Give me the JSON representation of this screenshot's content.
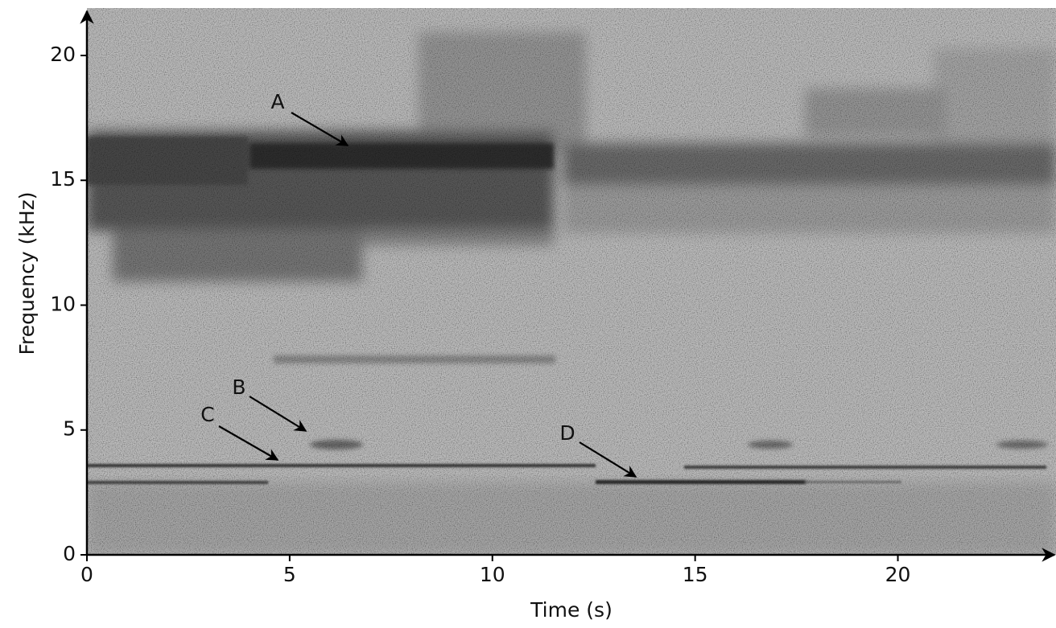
{
  "chart_data": {
    "type": "spectrogram",
    "xlabel": "Time (s)",
    "ylabel": "Frequency (kHz)",
    "xlim": [
      0,
      23.9
    ],
    "xticks": [
      0,
      5,
      10,
      15,
      20
    ],
    "ylim": [
      0,
      21.9
    ],
    "yticks": [
      0,
      5,
      10,
      15,
      20
    ],
    "annotations": [
      "A",
      "B",
      "C",
      "D"
    ]
  }
}
